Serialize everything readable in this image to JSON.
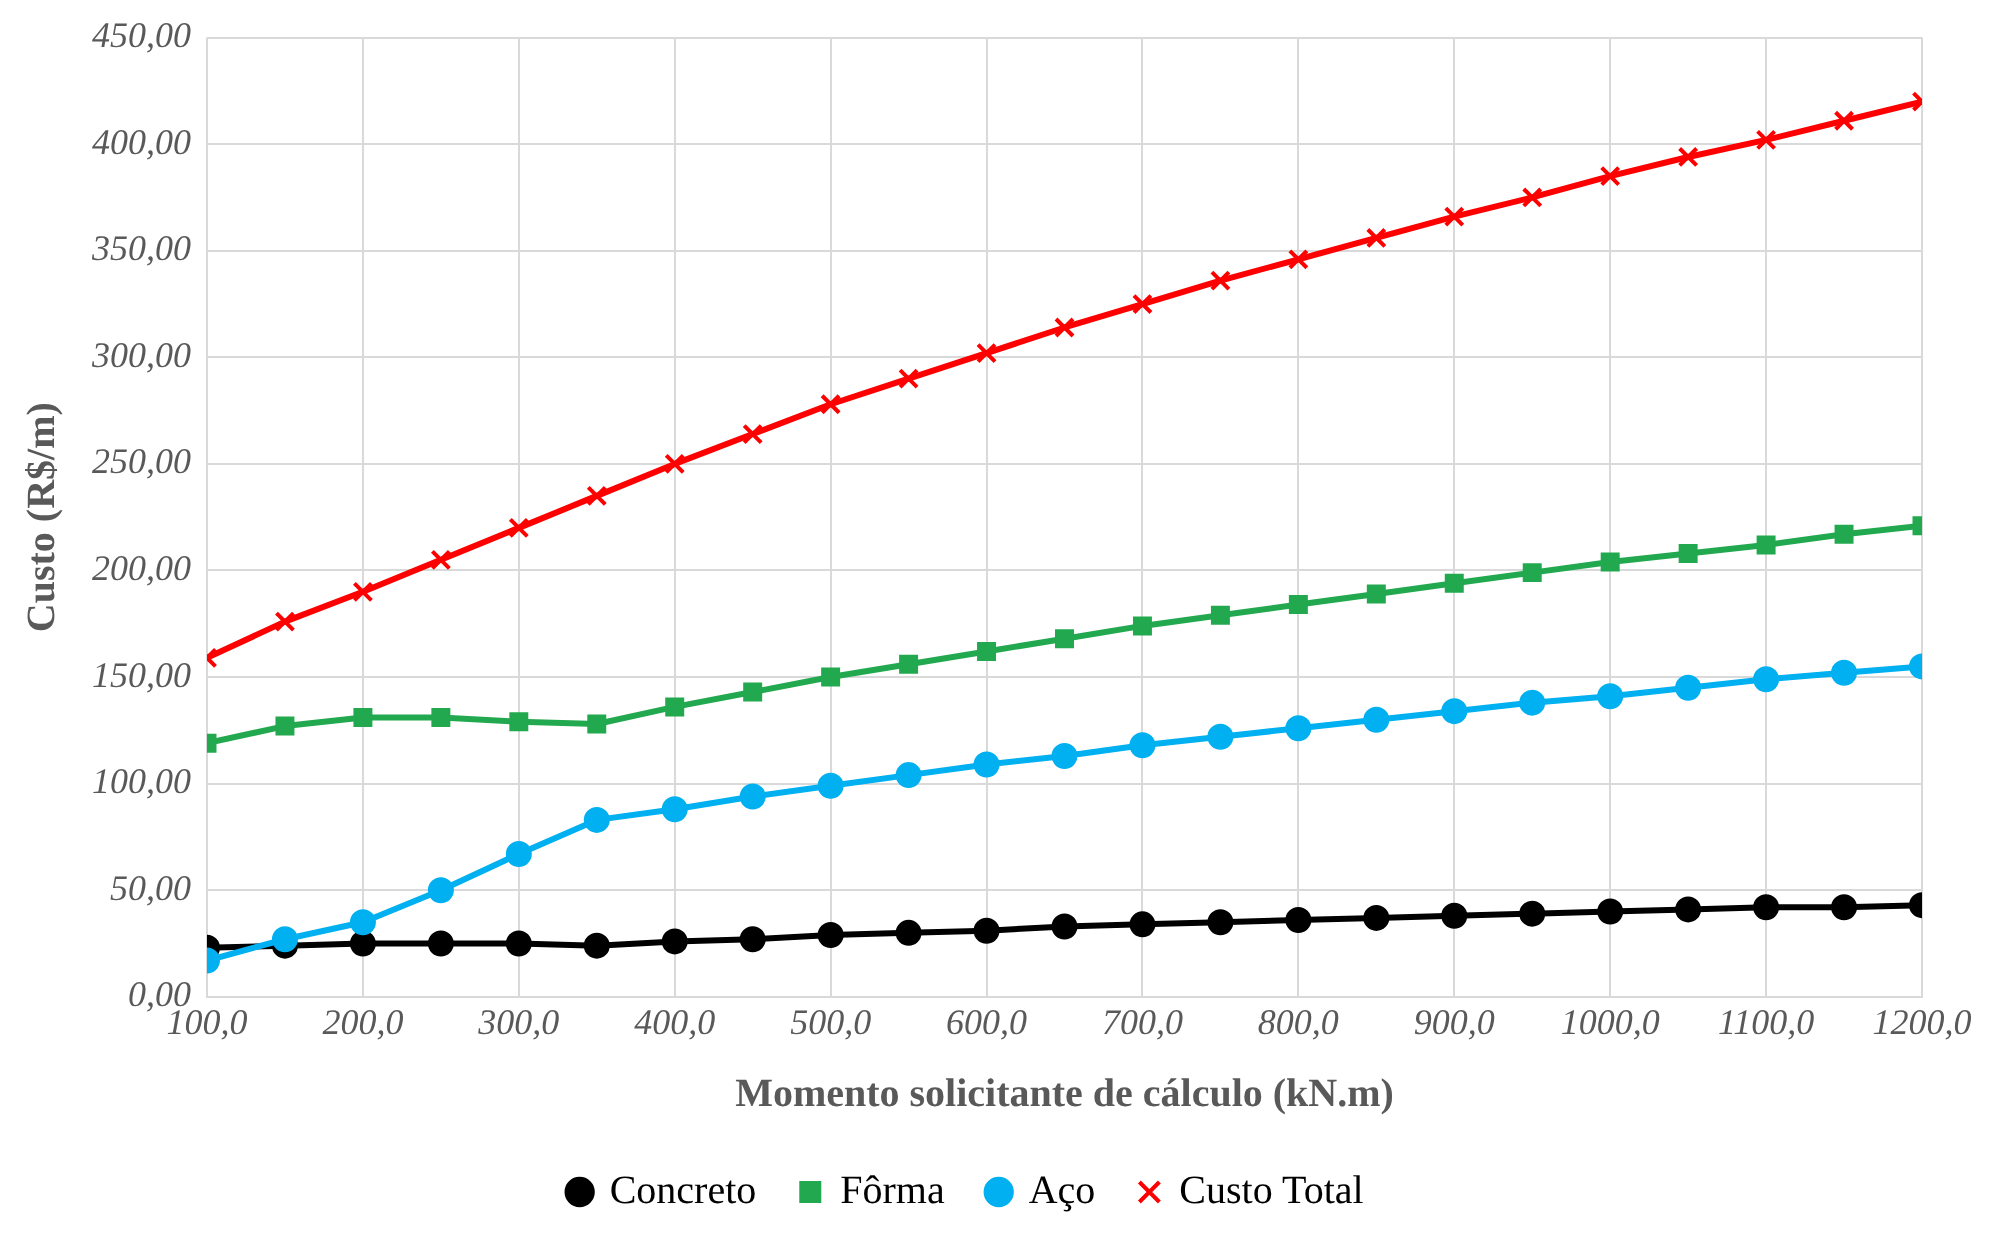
{
  "chart_data": {
    "type": "line",
    "xlabel": "Momento solicitante de cálculo (kN.m)",
    "ylabel": "Custo (R$/m)",
    "x": [
      100,
      150,
      200,
      250,
      300,
      350,
      400,
      450,
      500,
      550,
      600,
      650,
      700,
      750,
      800,
      850,
      900,
      950,
      1000,
      1050,
      1100,
      1150,
      1200
    ],
    "xlim": [
      100,
      1200
    ],
    "xticks": [
      {
        "value": 100,
        "label": "100,0"
      },
      {
        "value": 200,
        "label": "200,0"
      },
      {
        "value": 300,
        "label": "300,0"
      },
      {
        "value": 400,
        "label": "400,0"
      },
      {
        "value": 500,
        "label": "500,0"
      },
      {
        "value": 600,
        "label": "600,0"
      },
      {
        "value": 700,
        "label": "700,0"
      },
      {
        "value": 800,
        "label": "800,0"
      },
      {
        "value": 900,
        "label": "900,0"
      },
      {
        "value": 1000,
        "label": "1000,0"
      },
      {
        "value": 1100,
        "label": "1100,0"
      },
      {
        "value": 1200,
        "label": "1200,0"
      }
    ],
    "ylim": [
      0,
      450
    ],
    "yticks": [
      {
        "value": 0,
        "label": "0,00"
      },
      {
        "value": 50,
        "label": "50,00"
      },
      {
        "value": 100,
        "label": "100,00"
      },
      {
        "value": 150,
        "label": "150,00"
      },
      {
        "value": 200,
        "label": "200,00"
      },
      {
        "value": 250,
        "label": "250,00"
      },
      {
        "value": 300,
        "label": "300,00"
      },
      {
        "value": 350,
        "label": "350,00"
      },
      {
        "value": 400,
        "label": "400,00"
      },
      {
        "value": 450,
        "label": "450,00"
      }
    ],
    "grid": true,
    "legend": "bottom",
    "line_style": "solid",
    "series": [
      {
        "name": "Concreto",
        "color": "#000000",
        "marker": "circle",
        "values": [
          23,
          24,
          25,
          25,
          25,
          24,
          26,
          27,
          29,
          30,
          31,
          33,
          34,
          35,
          36,
          37,
          38,
          39,
          40,
          41,
          42,
          42,
          43
        ]
      },
      {
        "name": "Fôrma",
        "color": "#22a94f",
        "marker": "square",
        "values": [
          119,
          127,
          131,
          131,
          129,
          128,
          136,
          143,
          150,
          156,
          162,
          168,
          174,
          179,
          184,
          189,
          194,
          199,
          204,
          208,
          212,
          217,
          221
        ]
      },
      {
        "name": "Aço",
        "color": "#00b0f0",
        "marker": "circle",
        "values": [
          17,
          27,
          35,
          50,
          67,
          83,
          88,
          94,
          99,
          104,
          109,
          113,
          118,
          122,
          126,
          130,
          134,
          138,
          141,
          145,
          149,
          152,
          155
        ]
      },
      {
        "name": "Custo Total",
        "color": "#ff0000",
        "marker": "cross",
        "values": [
          159,
          176,
          190,
          205,
          220,
          235,
          250,
          264,
          278,
          290,
          302,
          314,
          325,
          336,
          346,
          356,
          366,
          375,
          385,
          394,
          402,
          411,
          420
        ]
      }
    ]
  }
}
